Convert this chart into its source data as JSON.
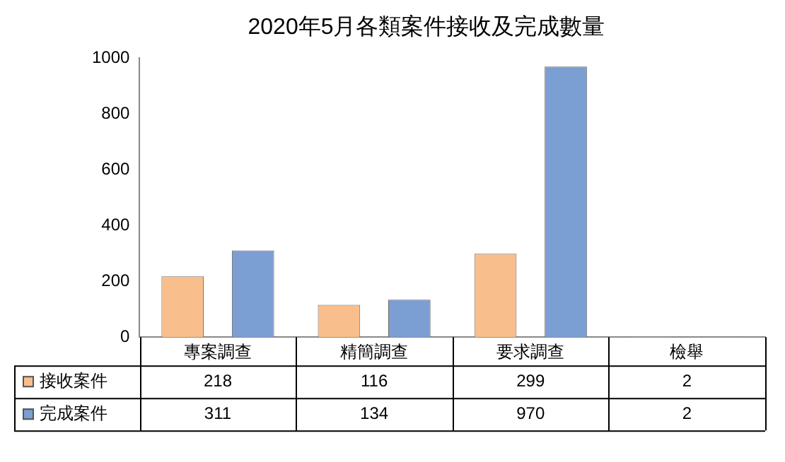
{
  "chart_data": {
    "type": "bar",
    "title": "2020年5月各類案件接收及完成數量",
    "categories": [
      "專案調查",
      "精簡調查",
      "要求調查",
      "檢舉"
    ],
    "series": [
      {
        "name": "接收案件",
        "color": "#f8bf8c",
        "values": [
          218,
          116,
          299,
          2
        ]
      },
      {
        "name": "完成案件",
        "color": "#7b9ed3",
        "values": [
          311,
          134,
          970,
          2
        ]
      }
    ],
    "ylim": [
      0,
      1000
    ],
    "yticks": [
      0,
      200,
      400,
      600,
      800,
      1000
    ],
    "grid": false,
    "legend": "bottom",
    "data_labels": true
  }
}
